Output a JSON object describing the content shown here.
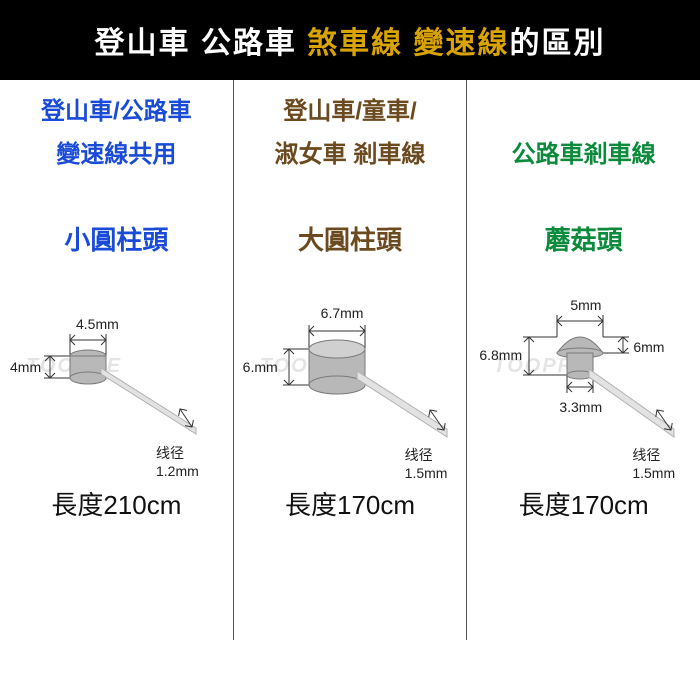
{
  "header": {
    "bg": "#000000",
    "parts": [
      {
        "text": "登山車 公路車 ",
        "color": "#ffffff"
      },
      {
        "text": "煞車線 變速線",
        "color": "#d9a300"
      },
      {
        "text": "的區別",
        "color": "#ffffff"
      }
    ]
  },
  "border_color": "#555555",
  "watermark": "TOOPRE",
  "columns": [
    {
      "category_lines": [
        "登山車/公路車",
        "變速線共用"
      ],
      "category_color": "#1a4bd6",
      "head_name": "小圓柱頭",
      "head_color": "#1a4bd6",
      "length_label": "長度210cm",
      "diagram": {
        "type": "small-cylinder",
        "top_dim": "4.5mm",
        "side_dim": "4mm",
        "wire_dim": "线径1.2mm",
        "body_fill": "#b8b8b8",
        "body_stroke": "#7a7a7a",
        "wire_fill": "#e2e2e2",
        "wire_stroke": "#b0b0b0",
        "arrow_color": "#333333"
      }
    },
    {
      "category_lines": [
        "登山車/童車/",
        "淑女車  剎車線"
      ],
      "category_color": "#6b4a1f",
      "head_name": "大圓柱頭",
      "head_color": "#6b4a1f",
      "length_label": "長度170cm",
      "diagram": {
        "type": "large-cylinder",
        "top_dim": "6.7mm",
        "side_dim": "6.mm",
        "wire_dim": "线径1.5mm",
        "body_fill": "#b8b8b8",
        "body_stroke": "#7a7a7a",
        "wire_fill": "#e2e2e2",
        "wire_stroke": "#b0b0b0",
        "arrow_color": "#333333"
      }
    },
    {
      "category_lines": [
        "",
        "公路車剎車線"
      ],
      "category_color": "#0a8a3a",
      "head_name": "蘑菇頭",
      "head_color": "#0a8a3a",
      "length_label": "長度170cm",
      "diagram": {
        "type": "mushroom",
        "top_dim": "5mm",
        "top_right_dim": "6mm",
        "side_dim": "6.8mm",
        "bottom_side_dim": "3.3mm",
        "wire_dim": "线径1.5mm",
        "body_fill": "#b8b8b8",
        "body_stroke": "#7a7a7a",
        "wire_fill": "#e2e2e2",
        "wire_stroke": "#b0b0b0",
        "arrow_color": "#333333"
      }
    }
  ]
}
